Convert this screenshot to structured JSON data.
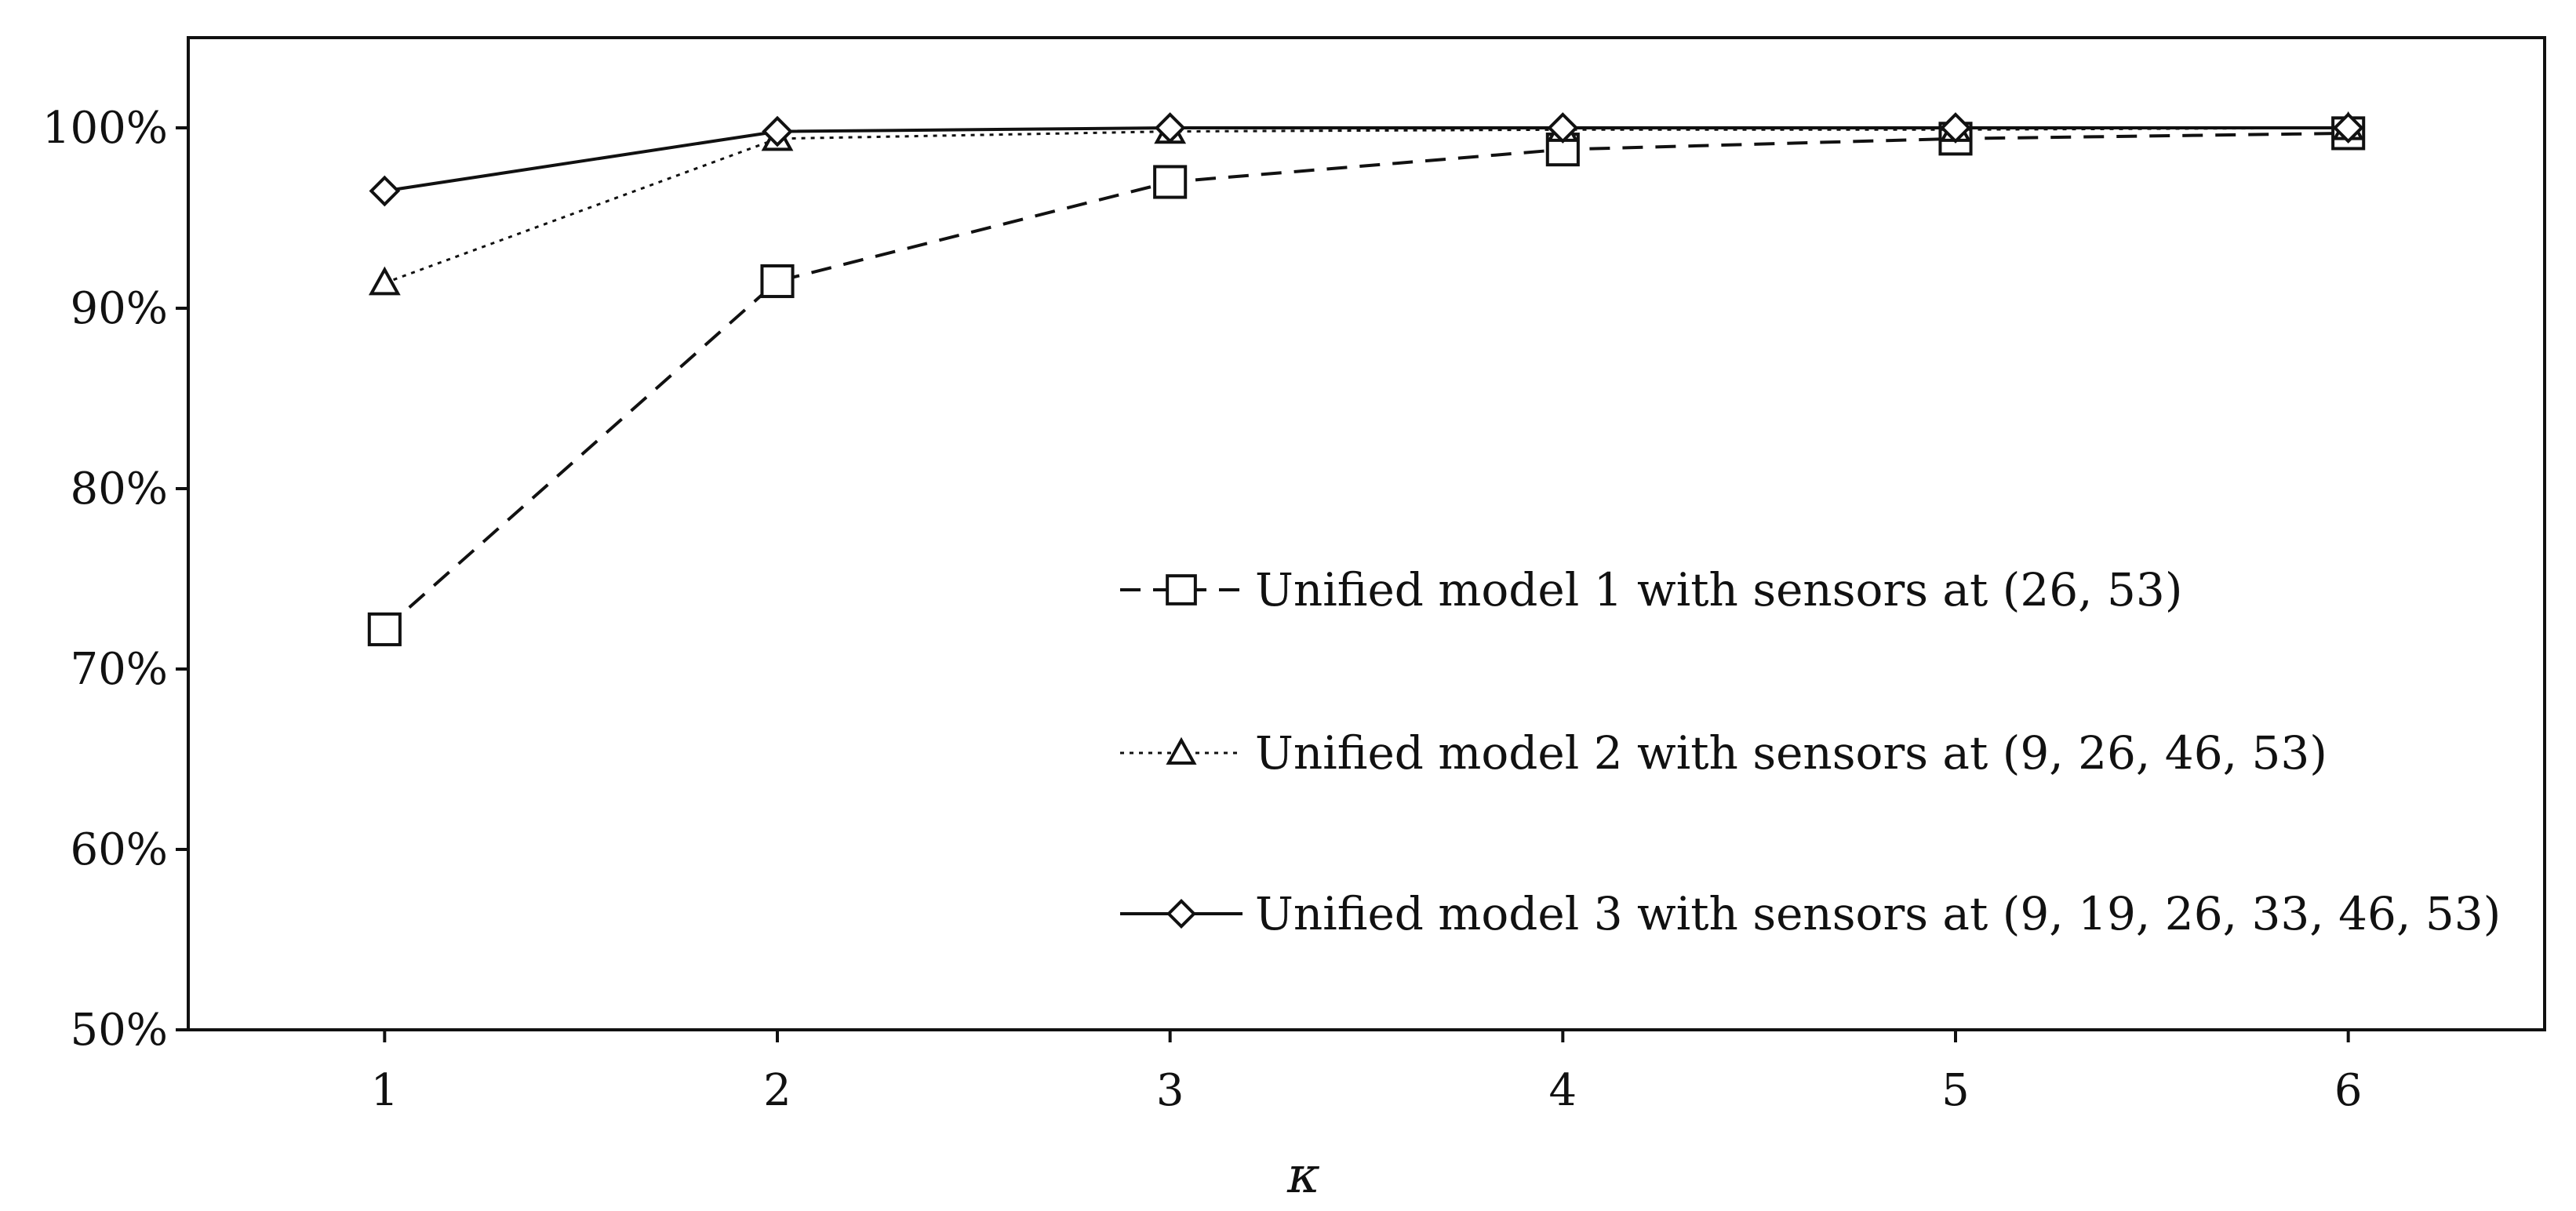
{
  "chart_data": {
    "type": "line",
    "title": "",
    "xlabel": "κ",
    "ylabel": "",
    "x": [
      1,
      2,
      3,
      4,
      5,
      6
    ],
    "xlim": [
      0.5,
      6.5
    ],
    "ylim": [
      50,
      105
    ],
    "yticks": [
      50,
      60,
      70,
      80,
      90,
      100
    ],
    "ytick_labels": [
      "50%",
      "60%",
      "70%",
      "80%",
      "90%",
      "100%"
    ],
    "xtick_labels": [
      "1",
      "2",
      "3",
      "4",
      "5",
      "6"
    ],
    "grid": false,
    "legend_position": "center-right",
    "series": [
      {
        "name": "Unified model 1 with sensors at (26, 53)",
        "values": [
          72.2,
          91.5,
          97.0,
          98.8,
          99.4,
          99.7
        ],
        "marker": "square",
        "line_style": "dashed",
        "color": "#111111"
      },
      {
        "name": "Unified model 2 with sensors at (9, 26, 46, 53)",
        "values": [
          91.4,
          99.4,
          99.8,
          99.9,
          99.9,
          100.0
        ],
        "marker": "triangle",
        "line_style": "dotted",
        "color": "#111111"
      },
      {
        "name": "Unified model 3 with sensors at (9, 19, 26, 33, 46, 53)",
        "values": [
          96.5,
          99.8,
          100.0,
          100.0,
          100.0,
          100.0
        ],
        "marker": "diamond",
        "line_style": "solid",
        "color": "#111111"
      }
    ]
  }
}
